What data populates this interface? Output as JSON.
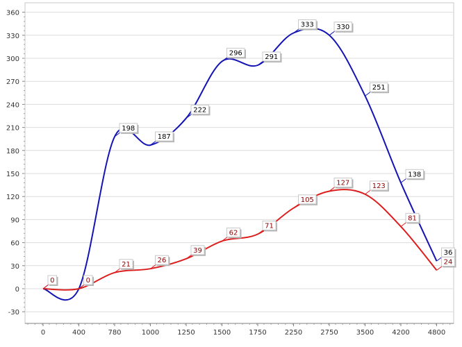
{
  "chart_data": {
    "type": "line",
    "title": "",
    "xlabel": "",
    "ylabel": "",
    "categories": [
      "0",
      "400",
      "780",
      "1000",
      "1250",
      "1500",
      "1750",
      "2250",
      "2750",
      "3500",
      "4200",
      "4800"
    ],
    "ylim": [
      -30,
      360
    ],
    "yticks": [
      -30,
      0,
      30,
      60,
      90,
      120,
      150,
      180,
      210,
      240,
      270,
      300,
      330,
      360
    ],
    "grid": true,
    "legend": "none",
    "series": [
      {
        "color": "#1414b4",
        "values": [
          0,
          0,
          198,
          187,
          222,
          296,
          291,
          333,
          330,
          251,
          138,
          36
        ],
        "label_text_color": "#000000"
      },
      {
        "color": "#dc1e1e",
        "values": [
          0,
          0,
          21,
          26,
          39,
          62,
          71,
          105,
          127,
          123,
          81,
          24
        ],
        "label_text_color": "#8b0000"
      }
    ]
  }
}
